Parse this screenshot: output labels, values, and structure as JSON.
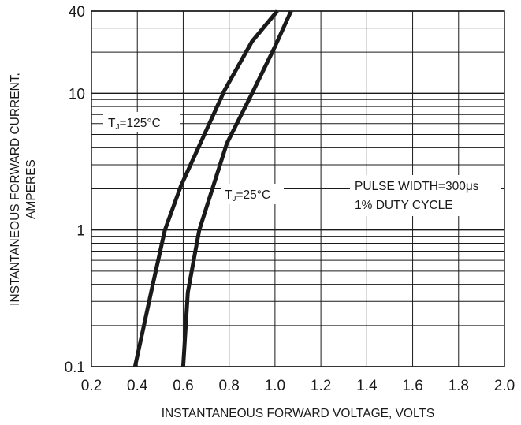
{
  "chart_data": {
    "type": "line",
    "title": "",
    "xlabel": "INSTANTANEOUS FORWARD VOLTAGE, VOLTS",
    "ylabel_lines": [
      "INSTANTANEOUS FORWARD CURRENT,",
      "AMPERES"
    ],
    "xlim": [
      0.2,
      2.0
    ],
    "ylim": [
      0.1,
      40
    ],
    "yscale": "log",
    "grid": true,
    "x_ticks": [
      0.2,
      0.4,
      0.6,
      0.8,
      1.0,
      1.2,
      1.4,
      1.6,
      1.8,
      2.0
    ],
    "x_tick_labels": [
      "0.2",
      "0.4",
      "0.6",
      "0.8",
      "1.0",
      "1.2",
      "1.4",
      "1.6",
      "1.8",
      "2.0"
    ],
    "y_ticks": [
      0.1,
      1,
      10,
      40
    ],
    "y_tick_labels": [
      "0.1",
      "1",
      "10",
      "40"
    ],
    "y_grid": [
      0.1,
      0.2,
      0.3,
      0.4,
      0.5,
      0.6,
      0.7,
      0.8,
      0.9,
      1,
      2,
      3,
      4,
      5,
      6,
      7,
      8,
      9,
      10,
      20,
      30,
      40
    ],
    "series": [
      {
        "name": "TJ=125°C",
        "label_main": "T",
        "label_sub": "J",
        "label_rest": "=125°C",
        "x": [
          0.39,
          0.46,
          0.52,
          0.59,
          0.78,
          0.9,
          1.01
        ],
        "y": [
          0.1,
          0.35,
          1.0,
          2.1,
          10.5,
          24,
          40
        ]
      },
      {
        "name": "TJ=25°C",
        "label_main": "T",
        "label_sub": "J",
        "label_rest": "=25°C",
        "x": [
          0.6,
          0.62,
          0.67,
          0.79,
          0.9,
          1.0,
          1.07
        ],
        "y": [
          0.1,
          0.35,
          1.0,
          4.3,
          10.0,
          22,
          40
        ]
      }
    ],
    "annotation": [
      "PULSE WIDTH=300μs",
      "1% DUTY CYCLE"
    ],
    "line_color": "#1a1a1a",
    "grid_color": "#1a1a1a"
  }
}
